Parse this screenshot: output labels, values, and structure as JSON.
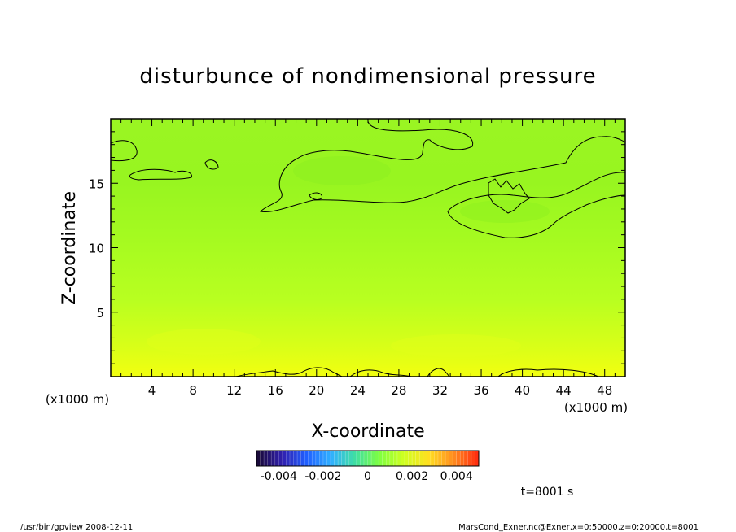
{
  "chart_data": {
    "type": "heatmap",
    "title": "disturbunce of nondimensional pressure",
    "xlabel": "X-coordinate",
    "ylabel": "Z-coordinate",
    "x_unit_left": "(x1000 m)",
    "x_unit_right": "(x1000 m)",
    "xlim": [
      0,
      50
    ],
    "ylim": [
      0,
      20
    ],
    "x_ticks": [
      "4",
      "8",
      "12",
      "16",
      "20",
      "24",
      "28",
      "32",
      "36",
      "40",
      "44",
      "48"
    ],
    "y_ticks": [
      "5",
      "10",
      "15"
    ],
    "colorbar": {
      "range": [
        -0.005,
        0.005
      ],
      "tick_labels": [
        "-0.004",
        "-0.002",
        "0",
        "0.002",
        "0.004"
      ],
      "colors": [
        "#1a0a3a",
        "#3020b0",
        "#2060ff",
        "#30b0ff",
        "#40e0a0",
        "#80ff40",
        "#d0ff20",
        "#ffe020",
        "#ff9020",
        "#ff3010"
      ]
    },
    "field": {
      "z_levels": [
        0,
        2,
        4,
        6,
        8,
        10,
        12,
        14,
        16,
        18,
        20
      ],
      "values": [
        0.0013,
        0.0011,
        0.0009,
        0.0008,
        0.0007,
        0.00065,
        0.0006,
        0.00055,
        0.0005,
        0.00055,
        0.0006
      ],
      "contour_level": 0
    },
    "time_label": "t=8001 s"
  },
  "footer": {
    "left": "/usr/bin/gpview   2008-12-11",
    "right": "MarsCond_Exner.nc@Exner,x=0:50000,z=0:20000,t=8001"
  }
}
